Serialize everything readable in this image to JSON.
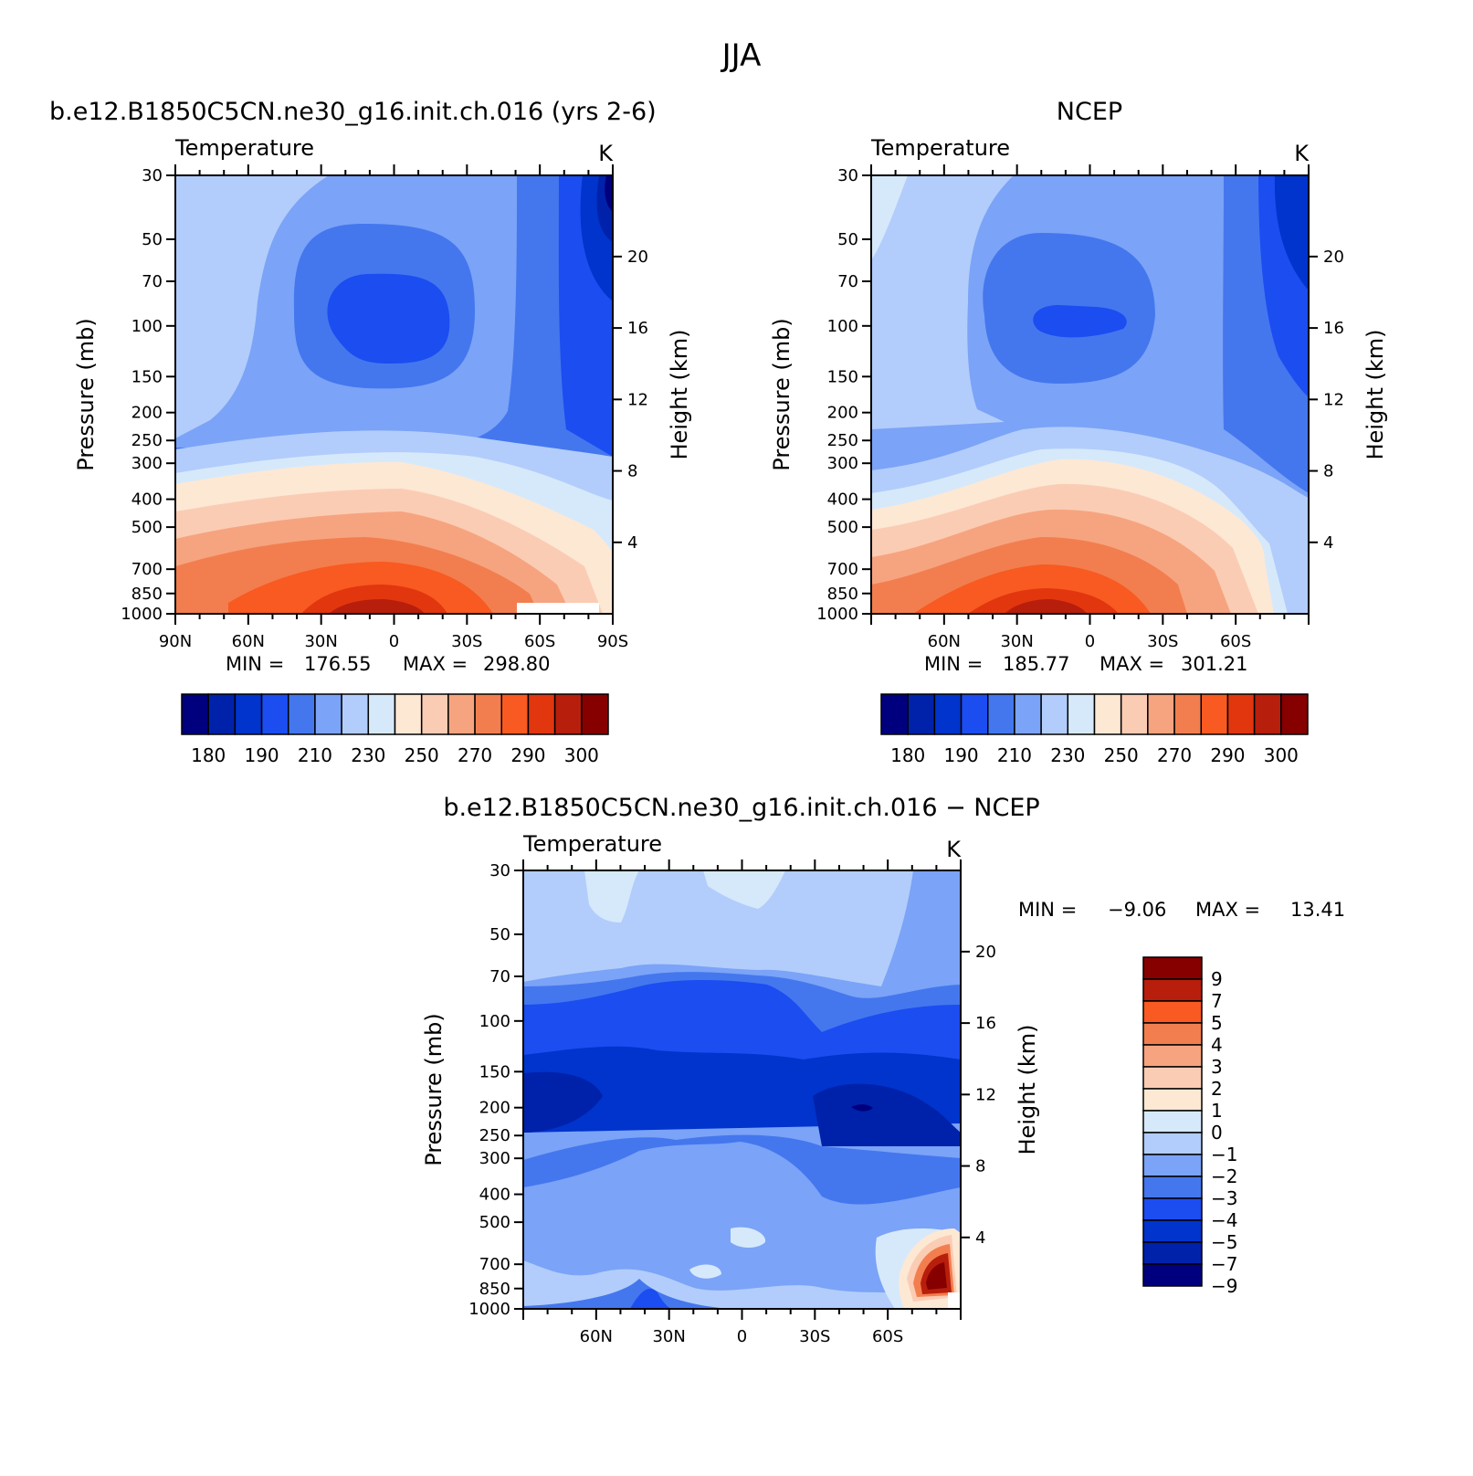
{
  "figure": {
    "title": "JJA",
    "colors": {
      "abs_scale": [
        "#00007f",
        "#0022aa",
        "#0034cc",
        "#1b4df0",
        "#4477ee",
        "#7ba3f7",
        "#b2cdfb",
        "#d6e9fb",
        "#fde8d4",
        "#fbccb4",
        "#f6a47f",
        "#f27e4f",
        "#f85a21",
        "#e2360f",
        "#b81e0c",
        "#860000"
      ],
      "diff_scale": [
        "#00007f",
        "#0022aa",
        "#0034cc",
        "#1b4df0",
        "#4477ee",
        "#7ba3f7",
        "#b2cdfb",
        "#d6e9fb",
        "#fde8d4",
        "#fbccb4",
        "#f6a47f",
        "#f27e4f",
        "#f85a21",
        "#b81e0c",
        "#860000"
      ]
    }
  },
  "chart_data": [
    {
      "type": "contour",
      "title": "b.e12.B1850C5CN.ne30_g16.init.ch.016 (yrs 2-6)",
      "left_string": "Temperature",
      "right_string": "K",
      "xlabel": "",
      "ylabel": "Pressure (mb)",
      "ylabel_right": "Height (km)",
      "x_ticklabels": [
        "90N",
        "60N",
        "30N",
        "0",
        "30S",
        "60S",
        "90S"
      ],
      "y_ticklabels": [
        "30",
        "50",
        "70",
        "100",
        "150",
        "200",
        "250",
        "300",
        "400",
        "500",
        "700",
        "850",
        "1000"
      ],
      "y_right_ticklabels": [
        "20",
        "16",
        "12",
        "8",
        "4"
      ],
      "min": "176.55",
      "max": "298.80",
      "min_label": "MIN =",
      "max_label": "MAX =",
      "colorbar_labels": [
        "180",
        "190",
        "210",
        "230",
        "250",
        "270",
        "290",
        "300"
      ]
    },
    {
      "type": "contour",
      "title": "NCEP",
      "left_string": "Temperature",
      "right_string": "K",
      "xlabel": "",
      "ylabel": "Pressure (mb)",
      "ylabel_right": "Height (km)",
      "x_ticklabels": [
        "60N",
        "30N",
        "0",
        "30S",
        "60S"
      ],
      "y_ticklabels": [
        "30",
        "50",
        "70",
        "100",
        "150",
        "200",
        "250",
        "300",
        "400",
        "500",
        "700",
        "850",
        "1000"
      ],
      "y_right_ticklabels": [
        "20",
        "16",
        "12",
        "8",
        "4"
      ],
      "min": "185.77",
      "max": "301.21",
      "min_label": "MIN =",
      "max_label": "MAX =",
      "colorbar_labels": [
        "180",
        "190",
        "210",
        "230",
        "250",
        "270",
        "290",
        "300"
      ]
    },
    {
      "type": "contour",
      "title": "b.e12.B1850C5CN.ne30_g16.init.ch.016 − NCEP",
      "left_string": "Temperature",
      "right_string": "K",
      "xlabel": "",
      "ylabel": "Pressure (mb)",
      "ylabel_right": "Height (km)",
      "x_ticklabels": [
        "60N",
        "30N",
        "0",
        "30S",
        "60S"
      ],
      "y_ticklabels": [
        "30",
        "50",
        "70",
        "100",
        "150",
        "200",
        "250",
        "300",
        "400",
        "500",
        "700",
        "850",
        "1000"
      ],
      "y_right_ticklabels": [
        "20",
        "16",
        "12",
        "8",
        "4"
      ],
      "min": "−9.06",
      "max": "13.41",
      "min_label": "MIN =",
      "max_label": "MAX =",
      "colorbar_labels": [
        "9",
        "7",
        "5",
        "4",
        "3",
        "2",
        "1",
        "0",
        "−1",
        "−2",
        "−3",
        "−4",
        "−5",
        "−7",
        "−9"
      ]
    }
  ]
}
